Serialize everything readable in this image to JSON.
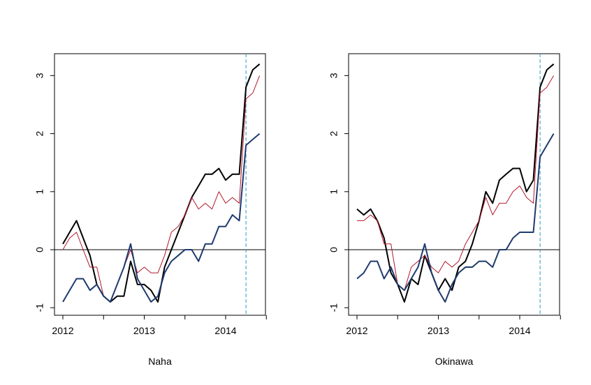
{
  "colors": {
    "black_series": "#000000",
    "red_series": "#b2182b",
    "blue_series": "#1f3a6e",
    "zero_line": "#000000",
    "marker_line": "#2a9bc4",
    "axis": "#000000"
  },
  "chart_data": [
    {
      "type": "line",
      "xlabel": "Naha",
      "ylabel": "",
      "xlim": [
        2012.0,
        2014.5
      ],
      "ylim": [
        -1,
        3.3
      ],
      "x_ticks": [
        2012,
        2012.5,
        2013,
        2013.5,
        2014,
        2014.5
      ],
      "x_tick_labels": [
        "2012",
        "",
        "2013",
        "",
        "2014",
        ""
      ],
      "y_ticks": [
        -1,
        0,
        1,
        2,
        3
      ],
      "y_tick_labels": [
        "-1",
        "0",
        "1",
        "2",
        "3"
      ],
      "reference_hline": 0,
      "reference_vline": 2014.25,
      "x": [
        2012.0,
        2012.083,
        2012.167,
        2012.25,
        2012.333,
        2012.417,
        2012.5,
        2012.583,
        2012.667,
        2012.75,
        2012.833,
        2012.917,
        2013.0,
        2013.083,
        2013.167,
        2013.25,
        2013.333,
        2013.417,
        2013.5,
        2013.583,
        2013.667,
        2013.75,
        2013.833,
        2013.917,
        2014.0,
        2014.083,
        2014.167,
        2014.25,
        2014.333,
        2014.417
      ],
      "series": [
        {
          "color_key": "black_series",
          "width": 2,
          "values": [
            0.1,
            0.3,
            0.5,
            0.2,
            -0.1,
            -0.6,
            -0.8,
            -0.9,
            -0.8,
            -0.8,
            -0.2,
            -0.6,
            -0.6,
            -0.7,
            -0.9,
            -0.3,
            0.0,
            0.3,
            0.6,
            0.9,
            1.1,
            1.3,
            1.3,
            1.4,
            1.2,
            1.3,
            1.3,
            2.8,
            3.1,
            3.2
          ]
        },
        {
          "color_key": "red_series",
          "width": 1,
          "values": [
            0.0,
            0.2,
            0.3,
            0.0,
            -0.3,
            -0.3,
            -0.8,
            -0.9,
            -0.6,
            -0.3,
            0.0,
            -0.4,
            -0.3,
            -0.4,
            -0.4,
            -0.1,
            0.3,
            0.4,
            0.6,
            0.9,
            0.7,
            0.8,
            0.7,
            1.0,
            0.8,
            0.9,
            0.8,
            2.6,
            2.7,
            3.0
          ]
        },
        {
          "color_key": "blue_series",
          "width": 2,
          "values": [
            -0.9,
            -0.7,
            -0.5,
            -0.5,
            -0.7,
            -0.6,
            -0.8,
            -0.9,
            -0.6,
            -0.3,
            0.1,
            -0.5,
            -0.7,
            -0.9,
            -0.8,
            -0.4,
            -0.2,
            -0.1,
            0.0,
            0.0,
            -0.2,
            0.1,
            0.1,
            0.4,
            0.4,
            0.6,
            0.5,
            1.8,
            1.9,
            2.0
          ]
        }
      ]
    },
    {
      "type": "line",
      "xlabel": "Okinawa",
      "ylabel": "",
      "xlim": [
        2012.0,
        2014.5
      ],
      "ylim": [
        -1,
        3.3
      ],
      "x_ticks": [
        2012,
        2012.5,
        2013,
        2013.5,
        2014,
        2014.5
      ],
      "x_tick_labels": [
        "2012",
        "",
        "2013",
        "",
        "2014",
        ""
      ],
      "y_ticks": [
        -1,
        0,
        1,
        2,
        3
      ],
      "y_tick_labels": [
        "-1",
        "0",
        "1",
        "2",
        "3"
      ],
      "reference_hline": 0,
      "reference_vline": 2014.25,
      "x": [
        2012.0,
        2012.083,
        2012.167,
        2012.25,
        2012.333,
        2012.417,
        2012.5,
        2012.583,
        2012.667,
        2012.75,
        2012.833,
        2012.917,
        2013.0,
        2013.083,
        2013.167,
        2013.25,
        2013.333,
        2013.417,
        2013.5,
        2013.583,
        2013.667,
        2013.75,
        2013.833,
        2013.917,
        2014.0,
        2014.083,
        2014.167,
        2014.25,
        2014.333,
        2014.417
      ],
      "series": [
        {
          "color_key": "black_series",
          "width": 2,
          "values": [
            0.7,
            0.6,
            0.7,
            0.5,
            0.2,
            -0.4,
            -0.6,
            -0.9,
            -0.5,
            -0.6,
            -0.1,
            -0.4,
            -0.7,
            -0.5,
            -0.7,
            -0.3,
            -0.2,
            0.1,
            0.5,
            1.0,
            0.8,
            1.2,
            1.3,
            1.4,
            1.4,
            1.0,
            1.2,
            2.8,
            3.1,
            3.2
          ]
        },
        {
          "color_key": "red_series",
          "width": 1,
          "values": [
            0.5,
            0.5,
            0.6,
            0.5,
            0.1,
            0.1,
            -0.6,
            -0.7,
            -0.3,
            -0.2,
            -0.1,
            -0.3,
            -0.4,
            -0.2,
            -0.3,
            -0.2,
            0.1,
            0.3,
            0.5,
            0.9,
            0.6,
            0.8,
            0.8,
            1.0,
            1.1,
            0.9,
            0.8,
            2.7,
            2.8,
            3.0
          ]
        },
        {
          "color_key": "blue_series",
          "width": 2,
          "values": [
            -0.5,
            -0.4,
            -0.2,
            -0.2,
            -0.5,
            -0.3,
            -0.6,
            -0.7,
            -0.5,
            -0.3,
            0.1,
            -0.4,
            -0.7,
            -0.9,
            -0.6,
            -0.4,
            -0.3,
            -0.3,
            -0.2,
            -0.2,
            -0.3,
            0.0,
            0.0,
            0.2,
            0.3,
            0.3,
            0.3,
            1.6,
            1.8,
            2.0
          ]
        }
      ]
    }
  ]
}
